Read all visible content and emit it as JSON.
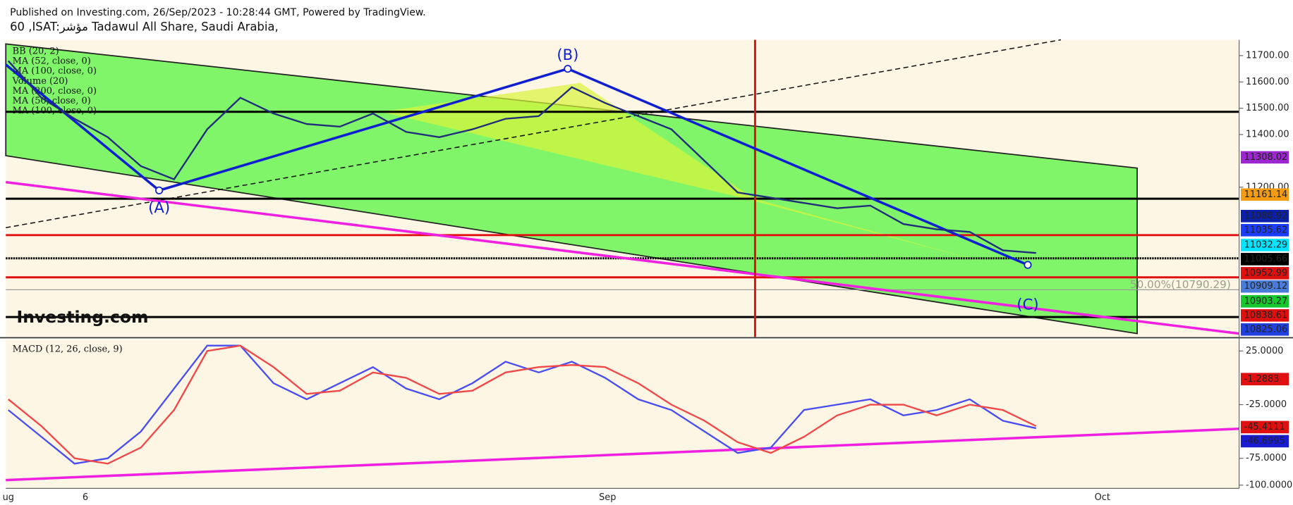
{
  "chart_data": {
    "type": "line",
    "header": "Published on Investing.com, 26/Sep/2023 - 10:28:44 GMT, Powered by TradingView.",
    "title": "60 ,ISAT:مؤشر Tadawul All Share, Saudi Arabia,",
    "indicators": [
      "BB (20, 2)",
      "MA (52, close, 0)",
      "MA (100, close, 0)",
      "Volume (20)",
      "MA (200, close, 0)",
      "MA (50, close, 0)",
      "MA (100, close, 0)"
    ],
    "annotations": [
      "(A)",
      "(B)",
      "(C)",
      "50.00%(10790.29)"
    ],
    "watermark": "Investing.com",
    "x_labels": [
      "ug",
      "6",
      "Sep",
      "Oct"
    ],
    "ylim": [
      10631,
      11760
    ],
    "yticks": [
      {
        "value": 11700,
        "label": "11700.00"
      },
      {
        "value": 11600,
        "label": "11600.00"
      },
      {
        "value": 11500,
        "label": "11500.00"
      },
      {
        "value": 11400,
        "label": "11400.00"
      },
      {
        "value": 11200,
        "label": "11200.00"
      }
    ],
    "series": [
      {
        "name": "close",
        "color": "#1f2d7a",
        "values": [
          11680,
          11540,
          11460,
          11390,
          11280,
          11230,
          11420,
          11540,
          11480,
          11440,
          11430,
          11480,
          11410,
          11390,
          11420,
          11460,
          11470,
          11580,
          11520,
          11470,
          11420,
          11300,
          11180,
          11160,
          11140,
          11120,
          11130,
          11060,
          11040,
          11030,
          10960,
          10950
        ]
      }
    ],
    "price_labels": [
      {
        "value": 11308.02,
        "color": "#9c27d0"
      },
      {
        "value": 11161.14,
        "color": "#f39c12"
      },
      {
        "value": 11080.92,
        "color": "#0c1fa8"
      },
      {
        "value": 11035.62,
        "color": "#1a3cff"
      },
      {
        "value": 11032.29,
        "color": "#00e5ff"
      },
      {
        "value": 11005.66,
        "color": "#000000"
      },
      {
        "value": 10952.99,
        "color": "#e01010"
      },
      {
        "value": 10909.12,
        "color": "#4a7bd8"
      },
      {
        "value": 10903.27,
        "color": "#16c72e"
      },
      {
        "value": 10838.61,
        "color": "#e01010"
      },
      {
        "value": 10825.06,
        "color": "#2041e0"
      }
    ],
    "macd": {
      "title": "MACD (12, 26, close, 9)",
      "ylim": [
        -103,
        35.8
      ],
      "yticks": [
        {
          "value": 25,
          "label": "25.0000"
        },
        {
          "value": -25,
          "label": "-25.0000"
        },
        {
          "value": -75,
          "label": "-75.0000"
        },
        {
          "value": -100,
          "label": "-100.0000"
        }
      ],
      "series": [
        {
          "name": "MACD",
          "color": "#4a4ef0",
          "values": [
            -30,
            -55,
            -80,
            -75,
            -50,
            -10,
            30,
            30,
            -5,
            -20,
            -5,
            10,
            -10,
            -20,
            -5,
            15,
            5,
            15,
            0,
            -20,
            -30,
            -50,
            -70,
            -65,
            -30,
            -25,
            -20,
            -35,
            -30,
            -20,
            -40,
            -47
          ]
        },
        {
          "name": "Signal",
          "color": "#f04848",
          "values": [
            -20,
            -45,
            -75,
            -80,
            -65,
            -30,
            25,
            30,
            10,
            -15,
            -12,
            5,
            0,
            -15,
            -12,
            5,
            10,
            12,
            10,
            -5,
            -25,
            -40,
            -60,
            -70,
            -55,
            -35,
            -25,
            -25,
            -35,
            -25,
            -30,
            -45
          ]
        }
      ],
      "labels": [
        {
          "value": -1.2883,
          "color": "#e01010"
        },
        {
          "value": -45.4111,
          "color": "#e01010"
        },
        {
          "value": -46.6995,
          "color": "#1a1ad0"
        }
      ]
    }
  }
}
